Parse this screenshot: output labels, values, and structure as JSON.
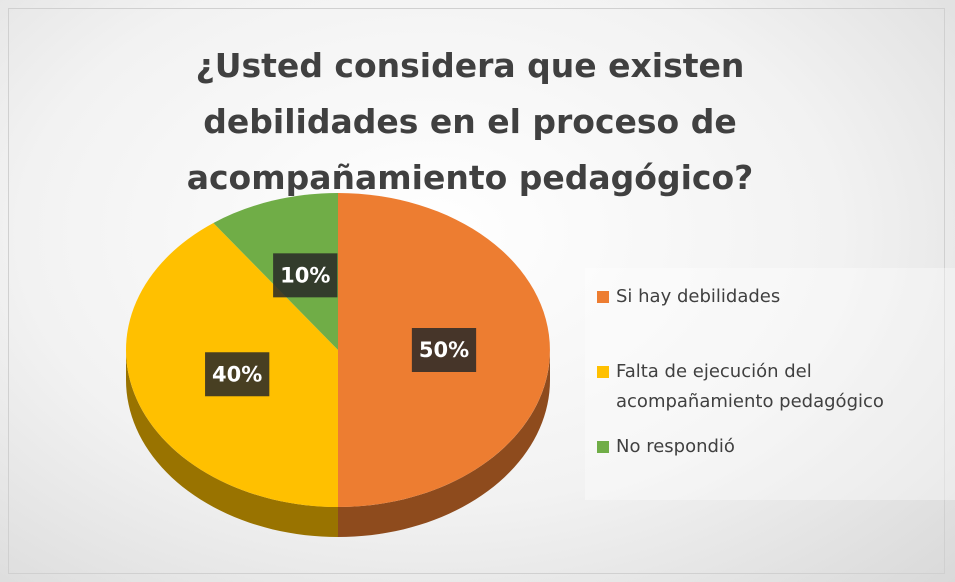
{
  "chart_data": {
    "type": "pie",
    "title": "¿Usted considera que existen debilidades en el proceso de acompañamiento pedagógico?",
    "categories": [
      "Si hay debilidades",
      "Falta de ejecución del acompañamiento pedagógico",
      "No respondió"
    ],
    "values": [
      50,
      40,
      10
    ],
    "value_labels": [
      "50%",
      "40%",
      "10%"
    ],
    "colors": [
      "#ED7D31",
      "#FFC000",
      "#70AD47"
    ],
    "legend": "right"
  }
}
